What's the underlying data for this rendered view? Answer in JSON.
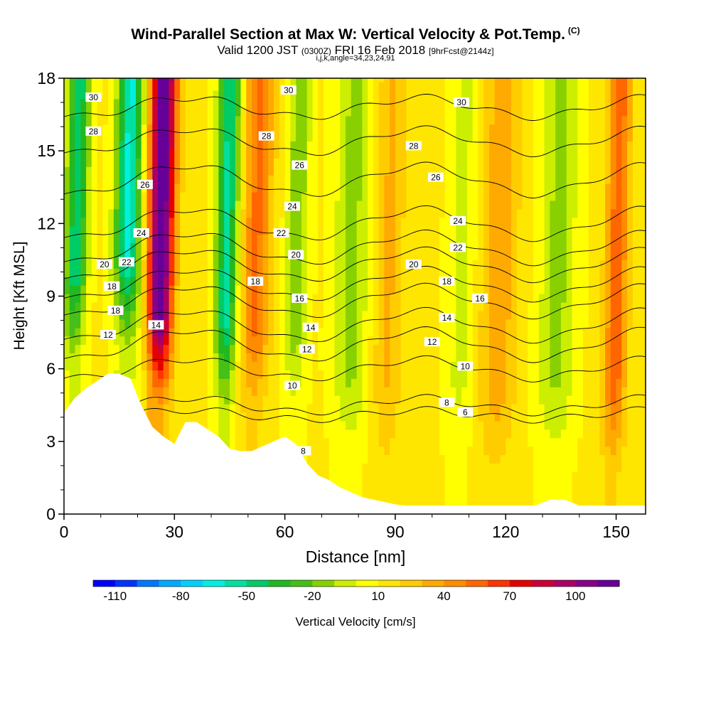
{
  "title": "Wind-Parallel Section at Max W: Vertical Velocity & Pot.Temp.",
  "title_mark": "(C)",
  "subtitle_main": "Valid 1200 JST",
  "subtitle_utc": "(0300Z)",
  "subtitle_date": "FRI 16 Feb 2018",
  "subtitle_fcst": "[9hrFcst@2144z]",
  "params": "i,j,k,angle=34,23,24,91",
  "chart_data": {
    "type": "heatmap",
    "title": "Wind-Parallel Section at Max W: Vertical Velocity & Pot.Temp.",
    "xlabel": "Distance [nm]",
    "ylabel": "Height [Kft MSL]",
    "xlim": [
      0,
      158
    ],
    "ylim": [
      0,
      18
    ],
    "x_ticks": [
      0,
      30,
      60,
      90,
      120,
      150
    ],
    "y_ticks": [
      0,
      3,
      6,
      9,
      12,
      15,
      18
    ],
    "colorbar": {
      "label": "Vertical Velocity [cm/s]",
      "tick_labels": [
        "-110",
        "-80",
        "-50",
        "-20",
        "10",
        "40",
        "70",
        "100"
      ],
      "tick_values": [
        -110,
        -80,
        -50,
        -20,
        10,
        40,
        70,
        100
      ],
      "min": -120,
      "max": 120,
      "step": 10,
      "colors": [
        "#0000ff",
        "#0033ff",
        "#0077ff",
        "#00aaff",
        "#00d0ff",
        "#00f0e0",
        "#00e0a0",
        "#00cc66",
        "#22b822",
        "#44c018",
        "#88d000",
        "#ccee00",
        "#ffff00",
        "#ffe600",
        "#ffcc00",
        "#ffaa00",
        "#ff8c00",
        "#ff6600",
        "#ff3300",
        "#e60000",
        "#cc0033",
        "#aa0066",
        "#880088",
        "#660099"
      ]
    },
    "w_features": [
      {
        "x_center": 3,
        "width": 3,
        "w": -60
      },
      {
        "x_center": 17,
        "width": 3.5,
        "w": -75
      },
      {
        "x_center": 26,
        "width": 3.5,
        "w": 110
      },
      {
        "x_center": 44,
        "width": 3,
        "w": -65
      },
      {
        "x_center": 52,
        "width": 4,
        "w": 40
      },
      {
        "x_center": 63,
        "width": 3,
        "w": -30
      },
      {
        "x_center": 78,
        "width": 5,
        "w": -25
      },
      {
        "x_center": 88,
        "width": 4,
        "w": 20
      },
      {
        "x_center": 108,
        "width": 4,
        "w": -15
      },
      {
        "x_center": 118,
        "width": 5,
        "w": 25
      },
      {
        "x_center": 134,
        "width": 5,
        "w": -25
      },
      {
        "x_center": 150,
        "width": 3,
        "w": 45
      }
    ],
    "terrain": {
      "x": [
        0,
        3,
        6,
        9,
        12,
        15,
        18,
        21,
        24,
        27,
        30,
        33,
        36,
        39,
        42,
        45,
        48,
        51,
        54,
        57,
        60,
        63,
        66,
        69,
        72,
        75,
        78,
        81,
        84,
        87,
        90,
        93,
        96,
        100,
        104,
        108,
        112,
        116,
        120,
        124,
        128,
        132,
        136,
        140,
        144,
        148,
        152,
        156,
        158
      ],
      "height": [
        4.2,
        4.8,
        5.2,
        5.5,
        5.8,
        5.8,
        5.6,
        4.5,
        3.6,
        3.2,
        2.9,
        3.8,
        3.8,
        3.5,
        3.2,
        2.7,
        2.6,
        2.6,
        2.8,
        3.0,
        3.2,
        2.9,
        2.1,
        1.6,
        1.4,
        1.1,
        0.9,
        0.7,
        0.6,
        0.5,
        0.4,
        0.35,
        0.35,
        0.35,
        0.35,
        0.35,
        0.35,
        0.35,
        0.35,
        0.35,
        0.35,
        0.6,
        0.6,
        0.35,
        0.35,
        0.35,
        0.35,
        0.35,
        0.35
      ]
    },
    "theta_isentropes": [
      {
        "value": 6,
        "base": 4.1,
        "amp": 0.2
      },
      {
        "value": 8,
        "base": 4.5,
        "amp": 0.3
      },
      {
        "value": 10,
        "base": 6.0,
        "amp": 0.4
      },
      {
        "value": 12,
        "base": 7.0,
        "amp": 0.6
      },
      {
        "value": 14,
        "base": 7.8,
        "amp": 0.6
      },
      {
        "value": 16,
        "base": 8.8,
        "amp": 0.6
      },
      {
        "value": 18,
        "base": 9.5,
        "amp": 0.6
      },
      {
        "value": 20,
        "base": 10.3,
        "amp": 0.6
      },
      {
        "value": 22,
        "base": 11.0,
        "amp": 0.6
      },
      {
        "value": 24,
        "base": 12.0,
        "amp": 0.6
      },
      {
        "value": 26,
        "base": 13.8,
        "amp": 0.6
      },
      {
        "value": 28,
        "base": 15.4,
        "amp": 0.5
      },
      {
        "value": 30,
        "base": 16.8,
        "amp": 0.4
      }
    ],
    "contour_labels": [
      {
        "text": "30",
        "x": 8,
        "y": 17.2
      },
      {
        "text": "28",
        "x": 8,
        "y": 15.8
      },
      {
        "text": "26",
        "x": 22,
        "y": 13.6
      },
      {
        "text": "24",
        "x": 21,
        "y": 11.6
      },
      {
        "text": "22",
        "x": 17,
        "y": 10.4
      },
      {
        "text": "20",
        "x": 11,
        "y": 10.3
      },
      {
        "text": "18",
        "x": 13,
        "y": 9.4
      },
      {
        "text": "18",
        "x": 14,
        "y": 8.4
      },
      {
        "text": "12",
        "x": 12,
        "y": 7.4
      },
      {
        "text": "14",
        "x": 25,
        "y": 7.8
      },
      {
        "text": "30",
        "x": 61,
        "y": 17.5
      },
      {
        "text": "28",
        "x": 55,
        "y": 15.6
      },
      {
        "text": "26",
        "x": 64,
        "y": 14.4
      },
      {
        "text": "24",
        "x": 62,
        "y": 12.7
      },
      {
        "text": "22",
        "x": 59,
        "y": 11.6
      },
      {
        "text": "20",
        "x": 63,
        "y": 10.7
      },
      {
        "text": "18",
        "x": 52,
        "y": 9.6
      },
      {
        "text": "16",
        "x": 64,
        "y": 8.9
      },
      {
        "text": "14",
        "x": 67,
        "y": 7.7
      },
      {
        "text": "12",
        "x": 66,
        "y": 6.8
      },
      {
        "text": "10",
        "x": 62,
        "y": 5.3
      },
      {
        "text": "8",
        "x": 65,
        "y": 2.6
      },
      {
        "text": "30",
        "x": 108,
        "y": 17.0
      },
      {
        "text": "28",
        "x": 95,
        "y": 15.2
      },
      {
        "text": "26",
        "x": 101,
        "y": 13.9
      },
      {
        "text": "24",
        "x": 107,
        "y": 12.1
      },
      {
        "text": "22",
        "x": 107,
        "y": 11.0
      },
      {
        "text": "20",
        "x": 95,
        "y": 10.3
      },
      {
        "text": "18",
        "x": 104,
        "y": 9.6
      },
      {
        "text": "16",
        "x": 113,
        "y": 8.9
      },
      {
        "text": "14",
        "x": 104,
        "y": 8.1
      },
      {
        "text": "12",
        "x": 100,
        "y": 7.1
      },
      {
        "text": "10",
        "x": 109,
        "y": 6.1
      },
      {
        "text": "8",
        "x": 104,
        "y": 4.6
      },
      {
        "text": "6",
        "x": 109,
        "y": 4.2
      }
    ]
  }
}
